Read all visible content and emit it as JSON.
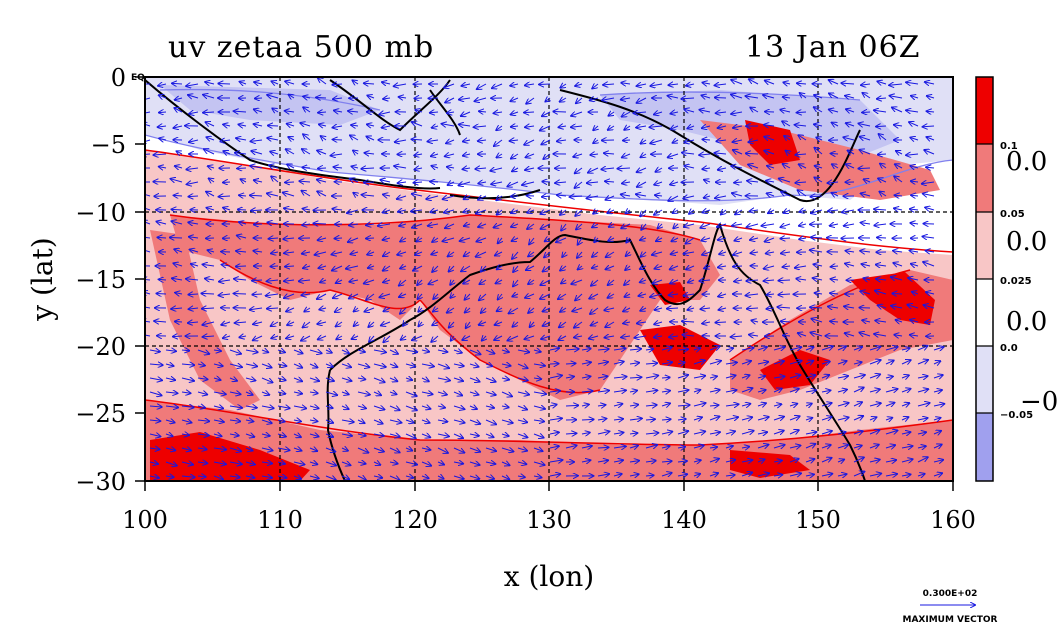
{
  "title": {
    "left": "uv zetaa 500 mb",
    "right": "13 Jan 06Z"
  },
  "axes": {
    "xlabel": "x (lon)",
    "ylabel": "y (lat)",
    "xticks": [
      "100",
      "110",
      "120",
      "130",
      "140",
      "150",
      "160"
    ],
    "yticks": [
      "0",
      "−5",
      "−10",
      "−15",
      "−20",
      "−25",
      "−30"
    ],
    "corner_label": "EQ"
  },
  "colorbar": {
    "small_labels": [
      "0.1",
      "0.05",
      "0.025",
      "0.0",
      "−0.05"
    ],
    "overflow_labels": [
      "0.0",
      "0.0",
      "0.0",
      "−0."
    ],
    "colors": [
      "#ee0000",
      "#f07a7a",
      "#f8c6c6",
      "#ffffff",
      "#e0e0f6",
      "#a0a0ee"
    ]
  },
  "vector_legend": {
    "value": "0.300E+02",
    "label": "MAXIMUM VECTOR"
  },
  "colors": {
    "strong_pos": "#ee0000",
    "mid_pos": "#f07a7a",
    "weak_pos": "#f8c6c6",
    "weak_neg": "#e0e0f6",
    "mid_neg": "#a0a0ee",
    "vector": "#1818e0",
    "coast": "#000000"
  }
}
